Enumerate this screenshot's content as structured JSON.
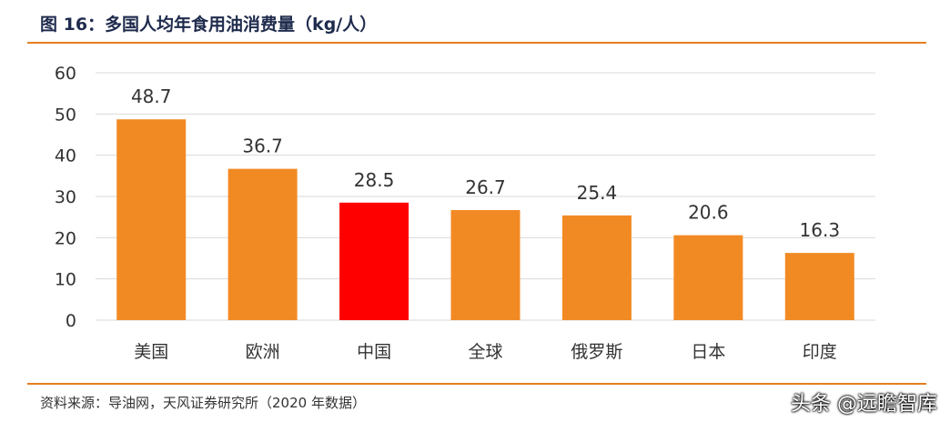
{
  "header": {
    "title": "图 16：多国人均年食用油消费量（kg/人）"
  },
  "footer": {
    "source": "资料来源：导油网，天风证券研究所（2020 年数据）",
    "watermark": "头条 @远瞻智库"
  },
  "colors": {
    "bar": "#f28a24",
    "highlight": "#ff0000",
    "grid": "#d9d9d9",
    "rule": "#e57e21",
    "text": "#333333"
  },
  "chart_data": {
    "type": "bar",
    "title": "",
    "xlabel": "",
    "ylabel": "",
    "categories": [
      "美国",
      "欧洲",
      "中国",
      "全球",
      "俄罗斯",
      "日本",
      "印度"
    ],
    "values": [
      48.7,
      36.7,
      28.5,
      26.7,
      25.4,
      20.6,
      16.3
    ],
    "value_labels": [
      "48.7",
      "36.7",
      "28.5",
      "26.7",
      "25.4",
      "20.6",
      "16.3"
    ],
    "highlight_category": "中国",
    "ylim": [
      0,
      60
    ],
    "yticks": [
      0,
      10,
      20,
      30,
      40,
      50,
      60
    ],
    "grid": true,
    "legend": "none"
  }
}
